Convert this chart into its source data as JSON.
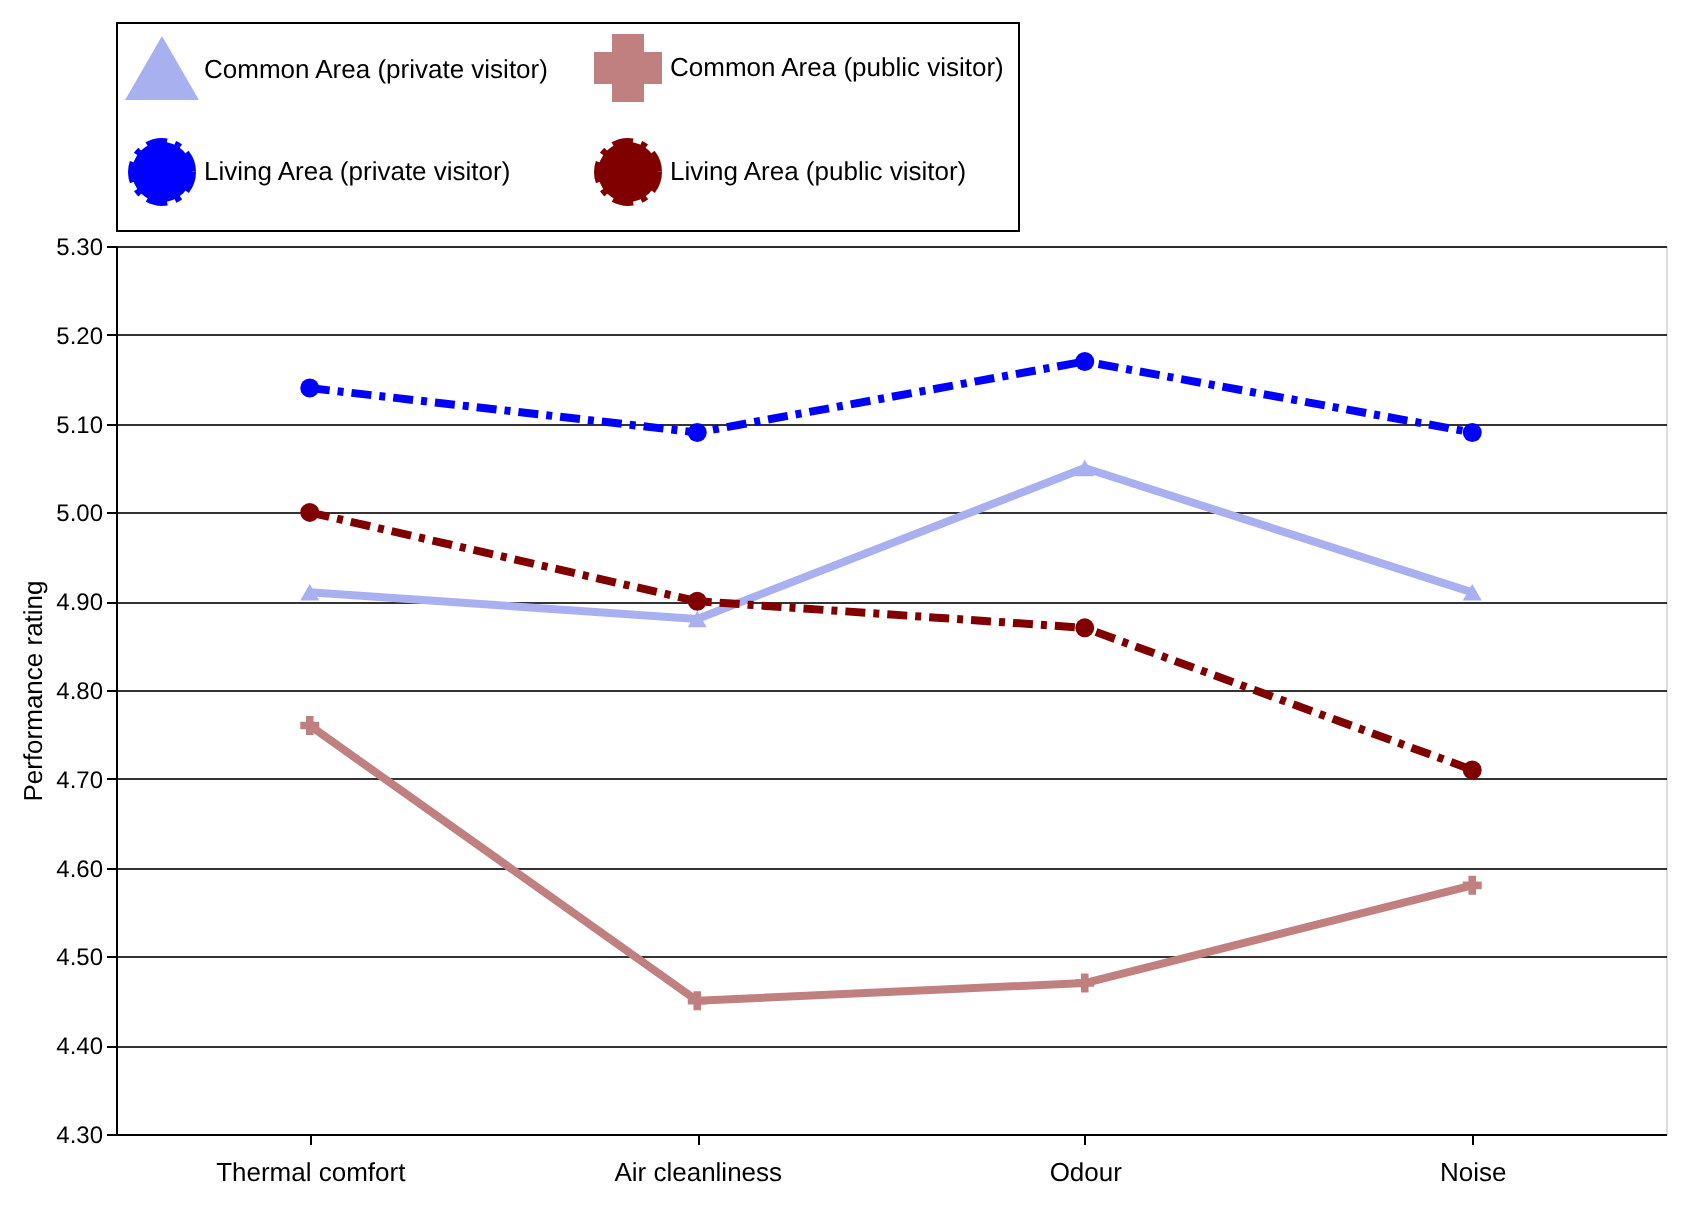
{
  "chart_data": {
    "type": "line",
    "ylabel": "Performance rating",
    "categories": [
      "Thermal comfort",
      "Air cleanliness",
      "Odour",
      "Noise"
    ],
    "series": [
      {
        "name": "Common Area (private visitor)",
        "color": "#a8b0f0",
        "marker": "triangle",
        "line_style": "solid",
        "values": [
          4.91,
          4.88,
          5.05,
          4.91
        ]
      },
      {
        "name": "Common Area (public visitor)",
        "color": "#c08080",
        "marker": "cross",
        "line_style": "solid",
        "values": [
          4.76,
          4.45,
          4.47,
          4.58
        ]
      },
      {
        "name": "Living Area (private visitor)",
        "color": "#0000ff",
        "marker": "circle",
        "line_style": "dashed",
        "values": [
          5.14,
          5.09,
          5.17,
          5.09
        ]
      },
      {
        "name": "Living Area (public visitor)",
        "color": "#800000",
        "marker": "circle",
        "line_style": "dashed",
        "values": [
          5.0,
          4.9,
          4.87,
          4.71
        ]
      }
    ],
    "ylim": [
      4.3,
      5.3
    ],
    "yticks": [
      {
        "value": 4.3,
        "label": "4.30"
      },
      {
        "value": 4.4,
        "label": "4.40"
      },
      {
        "value": 4.5,
        "label": "4.50"
      },
      {
        "value": 4.6,
        "label": "4.60"
      },
      {
        "value": 4.7,
        "label": "4.70"
      },
      {
        "value": 4.8,
        "label": "4.80"
      },
      {
        "value": 4.9,
        "label": "4.90"
      },
      {
        "value": 5.0,
        "label": "5.00"
      },
      {
        "value": 5.1,
        "label": "5.10"
      },
      {
        "value": 5.2,
        "label": "5.20"
      },
      {
        "value": 5.3,
        "label": "5.30"
      }
    ],
    "grid": "y",
    "legend": "top"
  }
}
